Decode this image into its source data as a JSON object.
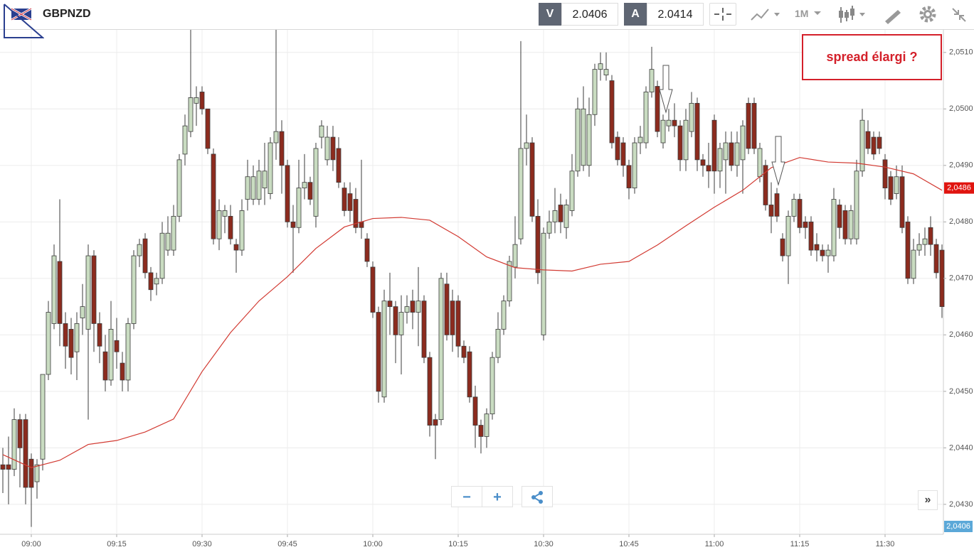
{
  "header": {
    "symbol": "GBPNZD",
    "bid_label": "V",
    "bid": "2.0406",
    "ask_label": "A",
    "ask": "2.0414",
    "timeframe": "1M"
  },
  "chart_data": {
    "type": "candlestick",
    "x": [
      535,
      536,
      537,
      538,
      539,
      540,
      541,
      542,
      543,
      544,
      545,
      546,
      547,
      548,
      549,
      550,
      551,
      552,
      553,
      554,
      555,
      556,
      557,
      558,
      559,
      560,
      561,
      562,
      563,
      564,
      565,
      566,
      567,
      568,
      569,
      570,
      571,
      572,
      573,
      574,
      575,
      576,
      577,
      578,
      579,
      580,
      581,
      582,
      583,
      584,
      585,
      586,
      587,
      588,
      589,
      590,
      591,
      592,
      593,
      594,
      595,
      596,
      597,
      598,
      599,
      600,
      601,
      602,
      603,
      604,
      605,
      606,
      607,
      608,
      609,
      610,
      611,
      612,
      613,
      614,
      615,
      616,
      617,
      618,
      619,
      620,
      621,
      622,
      623,
      624,
      625,
      626,
      627,
      628,
      629,
      630,
      631,
      632,
      633,
      634,
      635,
      636,
      637,
      638,
      639,
      640,
      641,
      642,
      643,
      644,
      645,
      646,
      647,
      648,
      649,
      650,
      651,
      652,
      653,
      654,
      655,
      656,
      657,
      658,
      659,
      660,
      661,
      662,
      663,
      664,
      665,
      666,
      667,
      668,
      669,
      670,
      671,
      672,
      673,
      674,
      675,
      676,
      677,
      678,
      679,
      680,
      681,
      682,
      683,
      684,
      685,
      686,
      687,
      688,
      689,
      690,
      691,
      692,
      693,
      694,
      695,
      696,
      697,
      698,
      699,
      700
    ],
    "open": [
      2.0437,
      2.0437,
      2.04362,
      2.0445,
      2.0445,
      2.0438,
      2.0434,
      2.0438,
      2.0453,
      2.0462,
      2.0473,
      2.0462,
      2.0461,
      2.0457,
      2.0463,
      2.0461,
      2.0474,
      2.0462,
      2.0457,
      2.0452,
      2.0459,
      2.0455,
      2.0452,
      2.0462,
      2.0474,
      2.0477,
      2.0471,
      2.0469,
      2.047,
      2.0475,
      2.0475,
      2.0481,
      2.0492,
      2.0496,
      2.0501,
      2.0503,
      2.05,
      2.0492,
      2.0477,
      2.0481,
      2.0481,
      2.0476,
      2.0475,
      2.0484,
      2.0484,
      2.0484,
      2.0486,
      2.0485,
      2.0494,
      2.0496,
      2.049,
      2.048,
      2.0479,
      2.0486,
      2.0487,
      2.0481,
      2.0495,
      2.0491,
      2.0495,
      2.0493,
      2.0486,
      2.0485,
      2.0484,
      2.048,
      2.0477,
      2.0472,
      2.0464,
      2.0449,
      2.0466,
      2.0465,
      2.046,
      2.0464,
      2.0466,
      2.0464,
      2.0466,
      2.0456,
      2.0445,
      2.0445,
      2.0469,
      2.0466,
      2.0466,
      2.0458,
      2.0457,
      2.0449,
      2.0444,
      2.0442,
      2.0446,
      2.0456,
      2.0461,
      2.0466,
      2.0472,
      2.0477,
      2.0493,
      2.0494,
      2.0481,
      2.046,
      2.0478,
      2.048,
      2.0483,
      2.0479,
      2.0482,
      2.0489,
      2.049,
      2.049,
      2.0499,
      2.0507,
      2.0506,
      2.0505,
      2.0495,
      2.0494,
      2.049,
      2.0486,
      2.0494,
      2.0494,
      2.0503,
      2.0504,
      2.0494,
      2.0497,
      2.0498,
      2.0497,
      2.0491,
      2.0496,
      2.0501,
      2.0491,
      2.049,
      2.0498,
      2.0489,
      2.0491,
      2.0494,
      2.049,
      2.0491,
      2.0501,
      2.0501,
      2.0488,
      2.049,
      2.0483,
      2.0485,
      2.0477,
      2.0474,
      2.0481,
      2.0484,
      2.048,
      2.048,
      2.0476,
      2.0475,
      2.0474,
      2.0474,
      2.0483,
      2.0482,
      2.0477,
      2.0477,
      2.0489,
      2.0496,
      2.0495,
      2.0495,
      2.0491,
      2.0488,
      2.0485,
      2.0488,
      2.048,
      2.047,
      2.0475,
      2.0476,
      2.0479,
      2.0476,
      2.0475
    ],
    "high": [
      2.044,
      2.0442,
      2.0447,
      2.0446,
      2.0446,
      2.0439,
      2.0438,
      2.0453,
      2.0466,
      2.0476,
      2.0484,
      2.0464,
      2.0463,
      2.0464,
      2.0469,
      2.0476,
      2.0475,
      2.0464,
      2.046,
      2.0466,
      2.0463,
      2.0457,
      2.0463,
      2.0475,
      2.0477,
      2.0478,
      2.0472,
      2.0471,
      2.048,
      2.0481,
      2.0483,
      2.0492,
      2.0499,
      2.0517,
      2.0504,
      2.0504,
      2.05,
      2.0493,
      2.0484,
      2.0483,
      2.0483,
      2.0477,
      2.0484,
      2.0491,
      2.049,
      2.0491,
      2.0494,
      2.0495,
      2.0514,
      2.0498,
      2.0491,
      2.0483,
      2.0491,
      2.0492,
      2.0488,
      2.0494,
      2.0498,
      2.0497,
      2.0497,
      2.0495,
      2.0487,
      2.0487,
      2.0486,
      2.0491,
      2.0478,
      2.0473,
      2.0465,
      2.0468,
      2.0471,
      2.0466,
      2.0467,
      2.0467,
      2.0468,
      2.0472,
      2.0467,
      2.0457,
      2.0446,
      2.0471,
      2.0471,
      2.0468,
      2.0467,
      2.0459,
      2.0458,
      2.0451,
      2.0445,
      2.0447,
      2.0457,
      2.0464,
      2.0467,
      2.0474,
      2.0481,
      2.0512,
      2.0499,
      2.0495,
      2.0484,
      2.0479,
      2.0482,
      2.0486,
      2.0485,
      2.0484,
      2.0492,
      2.0502,
      2.0504,
      2.0502,
      2.0508,
      2.051,
      2.051,
      2.0506,
      2.0496,
      2.0495,
      2.0491,
      2.0495,
      2.0497,
      2.0504,
      2.0511,
      2.0505,
      2.0499,
      2.05,
      2.0501,
      2.0498,
      2.05,
      2.0503,
      2.0502,
      2.0492,
      2.0494,
      2.0499,
      2.0494,
      2.0496,
      2.0496,
      2.0496,
      2.0498,
      2.0502,
      2.0502,
      2.0494,
      2.0491,
      2.0487,
      2.0486,
      2.0478,
      2.0482,
      2.0485,
      2.0485,
      2.0481,
      2.0481,
      2.0478,
      2.0476,
      2.0476,
      2.0486,
      2.0484,
      2.0483,
      2.0483,
      2.0491,
      2.05,
      2.0498,
      2.0496,
      2.0496,
      2.0492,
      2.0489,
      2.049,
      2.049,
      2.0481,
      2.0477,
      2.0478,
      2.0479,
      2.0481,
      2.0477,
      2.0476
    ],
    "low": [
      2.0432,
      2.043,
      2.0435,
      2.0433,
      2.043,
      2.0426,
      2.0431,
      2.0436,
      2.0452,
      2.0461,
      2.0458,
      2.0454,
      2.0453,
      2.0452,
      2.046,
      2.0445,
      2.0457,
      2.0455,
      2.045,
      2.0451,
      2.0454,
      2.045,
      2.045,
      2.0461,
      2.0472,
      2.047,
      2.0466,
      2.0467,
      2.0469,
      2.0474,
      2.0474,
      2.048,
      2.049,
      2.0495,
      2.0497,
      2.0499,
      2.0492,
      2.0476,
      2.0475,
      2.0478,
      2.0476,
      2.0471,
      2.0474,
      2.0482,
      2.0483,
      2.0483,
      2.0483,
      2.0484,
      2.0491,
      2.0485,
      2.0479,
      2.0471,
      2.0478,
      2.0484,
      2.0483,
      2.0479,
      2.0493,
      2.049,
      2.0489,
      2.0486,
      2.0481,
      2.048,
      2.0478,
      2.0477,
      2.0472,
      2.0463,
      2.0448,
      2.0448,
      2.046,
      2.0455,
      2.0453,
      2.0462,
      2.0461,
      2.0458,
      2.0455,
      2.0442,
      2.0438,
      2.0444,
      2.0459,
      2.0457,
      2.0456,
      2.0455,
      2.0448,
      2.044,
      2.0439,
      2.044,
      2.0445,
      2.0455,
      2.046,
      2.0465,
      2.047,
      2.0476,
      2.049,
      2.048,
      2.0469,
      2.0459,
      2.0477,
      2.0478,
      2.0478,
      2.0477,
      2.0481,
      2.0488,
      2.0489,
      2.0488,
      2.0497,
      2.0505,
      2.0505,
      2.0493,
      2.049,
      2.0488,
      2.0484,
      2.0485,
      2.0492,
      2.0493,
      2.0502,
      2.0495,
      2.0493,
      2.0496,
      2.0495,
      2.0489,
      2.0489,
      2.0495,
      2.0489,
      2.0488,
      2.0486,
      2.0485,
      2.0486,
      2.0485,
      2.0489,
      2.0488,
      2.0485,
      2.0492,
      2.0492,
      2.0487,
      2.0482,
      2.0478,
      2.048,
      2.0473,
      2.0469,
      2.048,
      2.0478,
      2.0477,
      2.0474,
      2.0473,
      2.0473,
      2.0471,
      2.0473,
      2.0477,
      2.0476,
      2.0476,
      2.0476,
      2.0488,
      2.0492,
      2.0491,
      2.0492,
      2.0484,
      2.0483,
      2.0484,
      2.0478,
      2.0469,
      2.0469,
      2.0474,
      2.0474,
      2.0474,
      2.047,
      2.0463
    ],
    "close": [
      2.04362,
      2.04362,
      2.0445,
      2.044,
      2.0433,
      2.0433,
      2.0437,
      2.0453,
      2.0464,
      2.0474,
      2.0462,
      2.0458,
      2.0456,
      2.0462,
      2.0465,
      2.0474,
      2.0462,
      2.0458,
      2.0452,
      2.0461,
      2.0457,
      2.0452,
      2.0462,
      2.0474,
      2.0476,
      2.0471,
      2.0468,
      2.047,
      2.0478,
      2.0478,
      2.0481,
      2.0491,
      2.0497,
      2.0502,
      2.0502,
      2.05,
      2.0493,
      2.0477,
      2.0482,
      2.0482,
      2.0477,
      2.0475,
      2.0482,
      2.0488,
      2.0488,
      2.0489,
      2.0489,
      2.0494,
      2.0496,
      2.049,
      2.048,
      2.0479,
      2.0486,
      2.0487,
      2.0484,
      2.0493,
      2.0497,
      2.0495,
      2.0491,
      2.0487,
      2.0482,
      2.0482,
      2.0479,
      2.0479,
      2.0473,
      2.0464,
      2.045,
      2.0466,
      2.0465,
      2.046,
      2.0464,
      2.0465,
      2.0464,
      2.0466,
      2.0456,
      2.0444,
      2.0444,
      2.047,
      2.046,
      2.046,
      2.0458,
      2.0456,
      2.0449,
      2.0444,
      2.0442,
      2.0446,
      2.0456,
      2.0461,
      2.0466,
      2.0473,
      2.0476,
      2.0493,
      2.0494,
      2.0481,
      2.0471,
      2.0478,
      2.048,
      2.0482,
      2.048,
      2.0483,
      2.0489,
      2.05,
      2.05,
      2.0499,
      2.0507,
      2.0508,
      2.0507,
      2.0494,
      2.0491,
      2.049,
      2.0486,
      2.0494,
      2.0495,
      2.0503,
      2.0507,
      2.0496,
      2.0498,
      2.0498,
      2.0497,
      2.0491,
      2.0498,
      2.0501,
      2.0491,
      2.049,
      2.0489,
      2.0489,
      2.0493,
      2.0494,
      2.049,
      2.0494,
      2.0497,
      2.0493,
      2.0493,
      2.0493,
      2.0483,
      2.0481,
      2.0481,
      2.0474,
      2.0481,
      2.0484,
      2.0479,
      2.0479,
      2.0475,
      2.0475,
      2.0474,
      2.0475,
      2.0484,
      2.0479,
      2.0477,
      2.0482,
      2.0489,
      2.0498,
      2.0493,
      2.0492,
      2.0493,
      2.0486,
      2.0484,
      2.0488,
      2.0479,
      2.047,
      2.0475,
      2.0476,
      2.0477,
      2.0476,
      2.0471,
      2.0465
    ],
    "up_color": "#c9dcc1",
    "down_color": "#8c2b1e",
    "edge_color": "#3b3b3b",
    "moving_average": {
      "type": "line",
      "color": "#d23a32",
      "x": [
        535,
        540,
        545,
        550,
        555,
        560,
        565,
        570,
        575,
        580,
        585,
        590,
        595,
        600,
        605,
        610,
        615,
        620,
        625,
        630,
        635,
        640,
        645,
        650,
        655,
        660,
        665,
        670,
        675,
        680,
        685,
        690,
        695,
        700
      ],
      "values": [
        2.04388,
        2.04365,
        2.04378,
        2.04406,
        2.04413,
        2.04428,
        2.04451,
        2.04535,
        2.04604,
        2.0466,
        2.04703,
        2.04753,
        2.04791,
        2.04806,
        2.04808,
        2.04803,
        2.04774,
        2.04738,
        2.04719,
        2.04715,
        2.04713,
        2.04725,
        2.0473,
        2.04759,
        2.04793,
        2.04826,
        2.04856,
        2.04896,
        2.04914,
        2.04906,
        2.04904,
        2.04897,
        2.04885,
        2.04856
      ]
    },
    "xlim": [
      534.5,
      700.25
    ],
    "ylim": [
      2.04247,
      2.0514
    ],
    "xticks": [
      {
        "value": 540,
        "label": "09:00"
      },
      {
        "value": 555,
        "label": "09:15"
      },
      {
        "value": 570,
        "label": "09:30"
      },
      {
        "value": 585,
        "label": "09:45"
      },
      {
        "value": 600,
        "label": "10:00"
      },
      {
        "value": 615,
        "label": "10:15"
      },
      {
        "value": 630,
        "label": "10:30"
      },
      {
        "value": 645,
        "label": "10:45"
      },
      {
        "value": 660,
        "label": "11:00"
      },
      {
        "value": 675,
        "label": "11:15"
      },
      {
        "value": 690,
        "label": "11:30"
      }
    ],
    "yticks": [
      {
        "value": 2.043,
        "label": "2,0430"
      },
      {
        "value": 2.044,
        "label": "2,0440"
      },
      {
        "value": 2.045,
        "label": "2,0450"
      },
      {
        "value": 2.046,
        "label": "2,0460"
      },
      {
        "value": 2.047,
        "label": "2,0470"
      },
      {
        "value": 2.048,
        "label": "2,0480"
      },
      {
        "value": 2.049,
        "label": "2,0490"
      },
      {
        "value": 2.05,
        "label": "2,0500"
      },
      {
        "value": 2.051,
        "label": "2,0510"
      }
    ],
    "grid": true,
    "price_marker": {
      "value": 2.0486,
      "label": "2,0486",
      "color": "#e0140f"
    },
    "bid_marker": "2,0406",
    "annotation": "spread élargi ?"
  }
}
